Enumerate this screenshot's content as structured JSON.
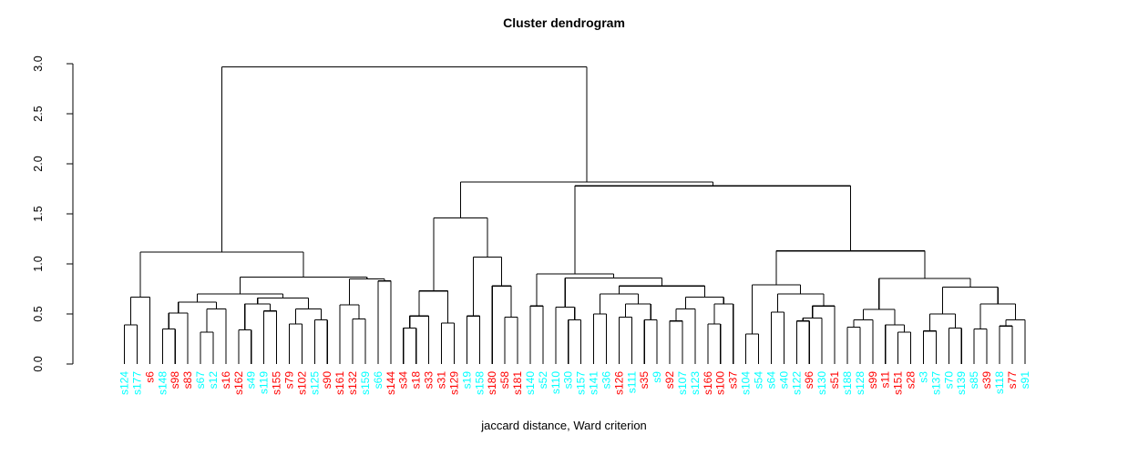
{
  "chart_data": {
    "type": "dendrogram",
    "title": "Cluster dendrogram",
    "subtitle": "jaccard distance, Ward criterion",
    "ylim": [
      0,
      3
    ],
    "ytick_step": 0.5,
    "yticks": [
      "0.0",
      "0.5",
      "1.0",
      "1.5",
      "2.0",
      "2.5",
      "3.0"
    ],
    "grid": "off",
    "line_color": "#000000",
    "label_colors": {
      "red": "#FF0000",
      "cyan": "#00FFFF"
    },
    "leaves": [
      {
        "label": "s124",
        "color": "cyan"
      },
      {
        "label": "s177",
        "color": "cyan"
      },
      {
        "label": "s6",
        "color": "red"
      },
      {
        "label": "s148",
        "color": "cyan"
      },
      {
        "label": "s98",
        "color": "red"
      },
      {
        "label": "s83",
        "color": "red"
      },
      {
        "label": "s67",
        "color": "cyan"
      },
      {
        "label": "s12",
        "color": "cyan"
      },
      {
        "label": "s16",
        "color": "red"
      },
      {
        "label": "s162",
        "color": "red"
      },
      {
        "label": "s49",
        "color": "cyan"
      },
      {
        "label": "s119",
        "color": "cyan"
      },
      {
        "label": "s155",
        "color": "red"
      },
      {
        "label": "s79",
        "color": "red"
      },
      {
        "label": "s102",
        "color": "red"
      },
      {
        "label": "s125",
        "color": "cyan"
      },
      {
        "label": "s90",
        "color": "red"
      },
      {
        "label": "s161",
        "color": "red"
      },
      {
        "label": "s132",
        "color": "red"
      },
      {
        "label": "s159",
        "color": "cyan"
      },
      {
        "label": "s66",
        "color": "cyan"
      },
      {
        "label": "s144",
        "color": "red"
      },
      {
        "label": "s34",
        "color": "red"
      },
      {
        "label": "s18",
        "color": "red"
      },
      {
        "label": "s33",
        "color": "red"
      },
      {
        "label": "s31",
        "color": "red"
      },
      {
        "label": "s129",
        "color": "red"
      },
      {
        "label": "s19",
        "color": "cyan"
      },
      {
        "label": "s158",
        "color": "cyan"
      },
      {
        "label": "s180",
        "color": "red"
      },
      {
        "label": "s58",
        "color": "red"
      },
      {
        "label": "s181",
        "color": "red"
      },
      {
        "label": "s140",
        "color": "cyan"
      },
      {
        "label": "s52",
        "color": "cyan"
      },
      {
        "label": "s110",
        "color": "cyan"
      },
      {
        "label": "s30",
        "color": "cyan"
      },
      {
        "label": "s157",
        "color": "cyan"
      },
      {
        "label": "s141",
        "color": "cyan"
      },
      {
        "label": "s36",
        "color": "cyan"
      },
      {
        "label": "s126",
        "color": "red"
      },
      {
        "label": "s111",
        "color": "cyan"
      },
      {
        "label": "s35",
        "color": "red"
      },
      {
        "label": "s9",
        "color": "cyan"
      },
      {
        "label": "s92",
        "color": "red"
      },
      {
        "label": "s107",
        "color": "cyan"
      },
      {
        "label": "s123",
        "color": "cyan"
      },
      {
        "label": "s166",
        "color": "red"
      },
      {
        "label": "s100",
        "color": "red"
      },
      {
        "label": "s37",
        "color": "red"
      },
      {
        "label": "s104",
        "color": "cyan"
      },
      {
        "label": "s54",
        "color": "cyan"
      },
      {
        "label": "s64",
        "color": "cyan"
      },
      {
        "label": "s40",
        "color": "cyan"
      },
      {
        "label": "s122",
        "color": "cyan"
      },
      {
        "label": "s96",
        "color": "red"
      },
      {
        "label": "s130",
        "color": "cyan"
      },
      {
        "label": "s51",
        "color": "red"
      },
      {
        "label": "s188",
        "color": "cyan"
      },
      {
        "label": "s128",
        "color": "cyan"
      },
      {
        "label": "s99",
        "color": "red"
      },
      {
        "label": "s11",
        "color": "red"
      },
      {
        "label": "s151",
        "color": "red"
      },
      {
        "label": "s28",
        "color": "red"
      },
      {
        "label": "s3",
        "color": "cyan"
      },
      {
        "label": "s137",
        "color": "cyan"
      },
      {
        "label": "s70",
        "color": "cyan"
      },
      {
        "label": "s139",
        "color": "cyan"
      },
      {
        "label": "s85",
        "color": "cyan"
      },
      {
        "label": "s39",
        "color": "red"
      },
      {
        "label": "s118",
        "color": "cyan"
      },
      {
        "label": "s77",
        "color": "red"
      },
      {
        "label": "s91",
        "color": "cyan"
      }
    ],
    "tree": [
      2.97,
      [
        1.12,
        [
          0.67,
          [
            0.39,
            1,
            2
          ],
          3
        ],
        [
          0.87,
          [
            0.7,
            [
              0.62,
              [
                0.51,
                [
                  0.35,
                  4,
                  5
                ],
                6
              ],
              [
                0.55,
                [
                  0.32,
                  7,
                  8
                ],
                9
              ]
            ],
            [
              0.66,
              [
                0.6,
                [
                  0.34,
                  10,
                  11
                ],
                [
                  0.53,
                  12,
                  13
                ]
              ],
              [
                0.55,
                [
                  0.4,
                  14,
                  15
                ],
                [
                  0.44,
                  16,
                  17
                ]
              ]
            ]
          ],
          [
            0.85,
            [
              0.59,
              18,
              [
                0.45,
                19,
                20
              ]
            ],
            [
              0.83,
              21,
              22
            ]
          ]
        ]
      ],
      [
        1.82,
        [
          1.46,
          [
            0.73,
            [
              0.48,
              [
                0.36,
                23,
                24
              ],
              25
            ],
            [
              0.41,
              26,
              27
            ]
          ],
          [
            1.07,
            [
              0.48,
              28,
              29
            ],
            [
              0.78,
              30,
              [
                0.47,
                31,
                32
              ]
            ]
          ]
        ],
        [
          1.78,
          [
            0.9,
            [
              0.58,
              33,
              34
            ],
            [
              0.86,
              [
                0.57,
                35,
                [
                  0.44,
                  36,
                  37
                ]
              ],
              [
                0.78,
                [
                  0.7,
                  [
                    0.5,
                    38,
                    39
                  ],
                  [
                    0.6,
                    [
                      0.47,
                      40,
                      41
                    ],
                    [
                      0.44,
                      42,
                      43
                    ]
                  ]
                ],
                [
                  0.67,
                  [
                    0.55,
                    [
                      0.43,
                      44,
                      45
                    ],
                    46
                  ],
                  [
                    0.6,
                    [
                      0.4,
                      47,
                      48
                    ],
                    49
                  ]
                ]
              ]
            ]
          ],
          [
            1.13,
            [
              0.79,
              [
                0.3,
                50,
                51
              ],
              [
                0.7,
                [
                  0.52,
                  52,
                  53
                ],
                [
                  0.58,
                  [
                    0.46,
                    [
                      0.43,
                      54,
                      55
                    ],
                    56
                  ],
                  57
                ]
              ]
            ],
            [
              0.855,
              [
                0.545,
                [
                  0.44,
                  [
                    0.37,
                    58,
                    59
                  ],
                  60
                ],
                [
                  0.39,
                  61,
                  [
                    0.32,
                    62,
                    63
                  ]
                ]
              ],
              [
                0.77,
                [
                  0.5,
                  [
                    0.33,
                    64,
                    65
                  ],
                  [
                    0.36,
                    66,
                    67
                  ]
                ],
                [
                  0.6,
                  [
                    0.35,
                    68,
                    69
                  ],
                  [
                    0.44,
                    [
                      0.38,
                      70,
                      71
                    ],
                    72
                  ]
                ]
              ]
            ]
          ]
        ]
      ]
    ]
  }
}
